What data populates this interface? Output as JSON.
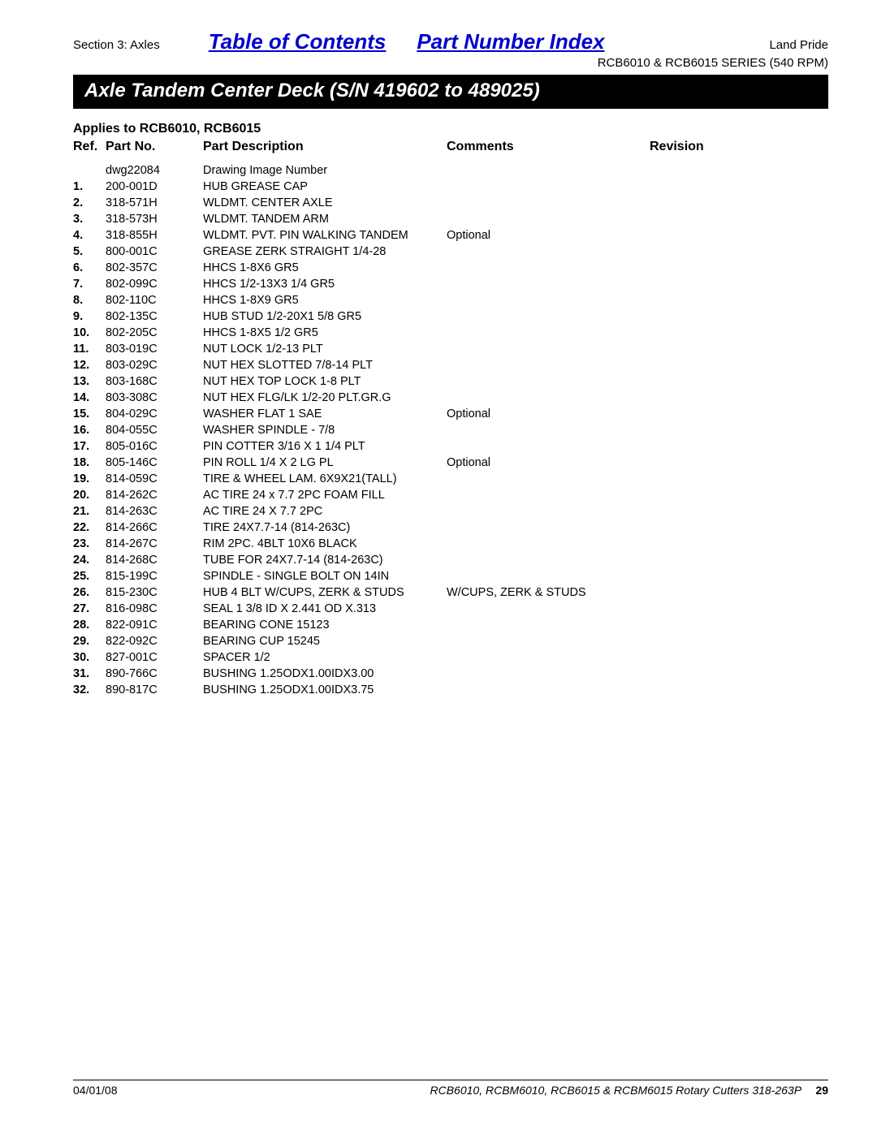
{
  "header": {
    "section_label": "Section 3: Axles",
    "toc_label": "Table of Contents",
    "pni_label": "Part Number Index",
    "brand": "Land Pride",
    "series": "RCB6010 & RCB6015 SERIES (540 RPM)"
  },
  "title_bar": "Axle Tandem Center Deck (S/N 419602 to 489025)",
  "applies": "Applies to RCB6010, RCB6015",
  "columns": {
    "ref": "Ref.",
    "part": "Part No.",
    "desc": "Part Description",
    "comments": "Comments",
    "rev": "Revision"
  },
  "rows": [
    {
      "ref": "",
      "part": "dwg22084",
      "desc": "Drawing Image Number",
      "comments": "",
      "rev": ""
    },
    {
      "ref": "1.",
      "part": "200-001D",
      "desc": "HUB GREASE CAP",
      "comments": "",
      "rev": ""
    },
    {
      "ref": "2.",
      "part": "318-571H",
      "desc": "WLDMT. CENTER AXLE",
      "comments": "",
      "rev": ""
    },
    {
      "ref": "3.",
      "part": "318-573H",
      "desc": "WLDMT. TANDEM ARM",
      "comments": "",
      "rev": ""
    },
    {
      "ref": "4.",
      "part": "318-855H",
      "desc": "WLDMT. PVT. PIN WALKING TANDEM",
      "comments": "Optional",
      "rev": ""
    },
    {
      "ref": "5.",
      "part": "800-001C",
      "desc": "GREASE ZERK STRAIGHT 1/4-28",
      "comments": "",
      "rev": ""
    },
    {
      "ref": "6.",
      "part": "802-357C",
      "desc": "HHCS 1-8X6 GR5",
      "comments": "",
      "rev": ""
    },
    {
      "ref": "7.",
      "part": "802-099C",
      "desc": "HHCS 1/2-13X3 1/4 GR5",
      "comments": "",
      "rev": ""
    },
    {
      "ref": "8.",
      "part": "802-110C",
      "desc": "HHCS 1-8X9 GR5",
      "comments": "",
      "rev": ""
    },
    {
      "ref": "9.",
      "part": "802-135C",
      "desc": "HUB STUD 1/2-20X1 5/8 GR5",
      "comments": "",
      "rev": ""
    },
    {
      "ref": "10.",
      "part": "802-205C",
      "desc": "HHCS 1-8X5 1/2 GR5",
      "comments": "",
      "rev": ""
    },
    {
      "ref": "11.",
      "part": "803-019C",
      "desc": "NUT LOCK 1/2-13 PLT",
      "comments": "",
      "rev": ""
    },
    {
      "ref": "12.",
      "part": "803-029C",
      "desc": "NUT HEX SLOTTED 7/8-14 PLT",
      "comments": "",
      "rev": ""
    },
    {
      "ref": "13.",
      "part": "803-168C",
      "desc": "NUT HEX TOP LOCK 1-8 PLT",
      "comments": "",
      "rev": ""
    },
    {
      "ref": "14.",
      "part": "803-308C",
      "desc": "NUT HEX FLG/LK 1/2-20 PLT.GR.G",
      "comments": "",
      "rev": ""
    },
    {
      "ref": "15.",
      "part": "804-029C",
      "desc": "WASHER FLAT 1 SAE",
      "comments": "Optional",
      "rev": ""
    },
    {
      "ref": "16.",
      "part": "804-055C",
      "desc": "WASHER SPINDLE - 7/8",
      "comments": "",
      "rev": ""
    },
    {
      "ref": "17.",
      "part": "805-016C",
      "desc": "PIN COTTER 3/16 X 1 1/4 PLT",
      "comments": "",
      "rev": ""
    },
    {
      "ref": "18.",
      "part": "805-146C",
      "desc": "PIN ROLL 1/4 X 2 LG PL",
      "comments": "Optional",
      "rev": ""
    },
    {
      "ref": "19.",
      "part": "814-059C",
      "desc": "TIRE & WHEEL LAM. 6X9X21(TALL)",
      "comments": "",
      "rev": ""
    },
    {
      "ref": "20.",
      "part": "814-262C",
      "desc": "AC TIRE 24 x 7.7 2PC FOAM FILL",
      "comments": "",
      "rev": ""
    },
    {
      "ref": "21.",
      "part": "814-263C",
      "desc": "AC TIRE 24 X 7.7 2PC",
      "comments": "",
      "rev": ""
    },
    {
      "ref": "22.",
      "part": "814-266C",
      "desc": "TIRE 24X7.7-14 (814-263C)",
      "comments": "",
      "rev": ""
    },
    {
      "ref": "23.",
      "part": "814-267C",
      "desc": "RIM 2PC. 4BLT 10X6 BLACK",
      "comments": "",
      "rev": ""
    },
    {
      "ref": "24.",
      "part": "814-268C",
      "desc": "TUBE FOR 24X7.7-14 (814-263C)",
      "comments": "",
      "rev": ""
    },
    {
      "ref": "25.",
      "part": "815-199C",
      "desc": "SPINDLE - SINGLE BOLT ON 14IN",
      "comments": "",
      "rev": ""
    },
    {
      "ref": "26.",
      "part": "815-230C",
      "desc": "HUB 4 BLT W/CUPS, ZERK & STUDS",
      "comments": "W/CUPS, ZERK & STUDS",
      "rev": ""
    },
    {
      "ref": "27.",
      "part": "816-098C",
      "desc": "SEAL 1 3/8 ID X 2.441 OD X.313",
      "comments": "",
      "rev": ""
    },
    {
      "ref": "28.",
      "part": "822-091C",
      "desc": "BEARING CONE 15123",
      "comments": "",
      "rev": ""
    },
    {
      "ref": "29.",
      "part": "822-092C",
      "desc": "BEARING CUP 15245",
      "comments": "",
      "rev": ""
    },
    {
      "ref": "30.",
      "part": "827-001C",
      "desc": "SPACER 1/2",
      "comments": "",
      "rev": ""
    },
    {
      "ref": "31.",
      "part": "890-766C",
      "desc": "BUSHING 1.25ODX1.00IDX3.00",
      "comments": "",
      "rev": ""
    },
    {
      "ref": "32.",
      "part": "890-817C",
      "desc": "BUSHING 1.25ODX1.00IDX3.75",
      "comments": "",
      "rev": ""
    }
  ],
  "footer": {
    "date": "04/01/08",
    "doc": "RCB6010, RCBM6010, RCB6015 & RCBM6015 Rotary Cutters 318-263P",
    "page": "29"
  },
  "colors": {
    "link": "#0000cc",
    "bg": "#ffffff",
    "text": "#000000",
    "bar_bg": "#000000",
    "bar_text": "#ffffff"
  },
  "fonts": {
    "body_family": "Arial, Helvetica, sans-serif",
    "body_size_pt": 11,
    "title_size_pt": 18,
    "link_size_pt": 20
  }
}
